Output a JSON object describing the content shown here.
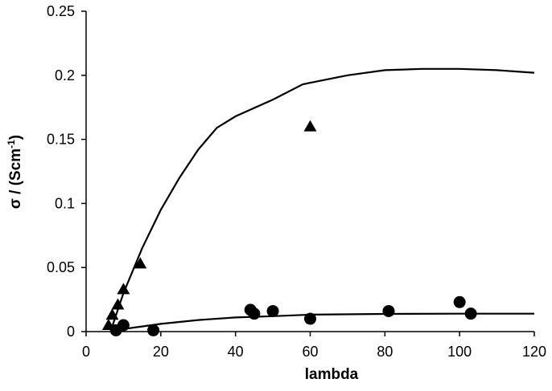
{
  "chart_data": {
    "type": "scatter",
    "title": "",
    "xlabel": "lambda",
    "ylabel": {
      "main": "σ / (Scm",
      "sup": "-1",
      "close": ")"
    },
    "xlim": [
      0,
      120
    ],
    "ylim": [
      0,
      0.25
    ],
    "x_ticks": [
      0,
      20,
      40,
      60,
      80,
      100,
      120
    ],
    "y_ticks": [
      0,
      0.05,
      0.1,
      0.15,
      0.2,
      0.25
    ],
    "x_tick_labels": [
      "0",
      "20",
      "40",
      "60",
      "80",
      "100",
      "120"
    ],
    "y_tick_labels": [
      "0",
      "0.05",
      "0.1",
      "0.15",
      "0.2",
      "0.25"
    ],
    "grid": false,
    "legend": "none",
    "series": [
      {
        "marker": "triangle",
        "color": "#000000",
        "points": [
          {
            "x": 6,
            "y": 0.005
          },
          {
            "x": 7,
            "y": 0.013
          },
          {
            "x": 8.5,
            "y": 0.021
          },
          {
            "x": 10,
            "y": 0.033
          },
          {
            "x": 14.5,
            "y": 0.053
          },
          {
            "x": 60,
            "y": 0.16
          }
        ]
      },
      {
        "marker": "circle",
        "color": "#000000",
        "points": [
          {
            "x": 8,
            "y": 0.001
          },
          {
            "x": 10,
            "y": 0.005
          },
          {
            "x": 18,
            "y": 0.001
          },
          {
            "x": 44,
            "y": 0.017
          },
          {
            "x": 45,
            "y": 0.014
          },
          {
            "x": 50,
            "y": 0.016
          },
          {
            "x": 60,
            "y": 0.01
          },
          {
            "x": 81,
            "y": 0.016
          },
          {
            "x": 100,
            "y": 0.023
          },
          {
            "x": 103,
            "y": 0.014
          }
        ]
      },
      {
        "marker": "line",
        "color": "#000000",
        "points": [
          {
            "x": 7,
            "y": 0.004
          },
          {
            "x": 10,
            "y": 0.03
          },
          {
            "x": 15,
            "y": 0.065
          },
          {
            "x": 20,
            "y": 0.095
          },
          {
            "x": 25,
            "y": 0.12
          },
          {
            "x": 30,
            "y": 0.142
          },
          {
            "x": 35,
            "y": 0.159
          },
          {
            "x": 40,
            "y": 0.168
          },
          {
            "x": 50,
            "y": 0.181
          },
          {
            "x": 58,
            "y": 0.193
          },
          {
            "x": 70,
            "y": 0.2
          },
          {
            "x": 80,
            "y": 0.204
          },
          {
            "x": 90,
            "y": 0.205
          },
          {
            "x": 100,
            "y": 0.205
          },
          {
            "x": 110,
            "y": 0.204
          },
          {
            "x": 120,
            "y": 0.202
          }
        ]
      },
      {
        "marker": "line",
        "color": "#000000",
        "points": [
          {
            "x": 8,
            "y": 0.0
          },
          {
            "x": 10,
            "y": 0.002
          },
          {
            "x": 15,
            "y": 0.004
          },
          {
            "x": 20,
            "y": 0.006
          },
          {
            "x": 30,
            "y": 0.009
          },
          {
            "x": 40,
            "y": 0.011
          },
          {
            "x": 50,
            "y": 0.012
          },
          {
            "x": 60,
            "y": 0.0132
          },
          {
            "x": 80,
            "y": 0.0138
          },
          {
            "x": 100,
            "y": 0.014
          },
          {
            "x": 120,
            "y": 0.014
          }
        ]
      }
    ]
  }
}
